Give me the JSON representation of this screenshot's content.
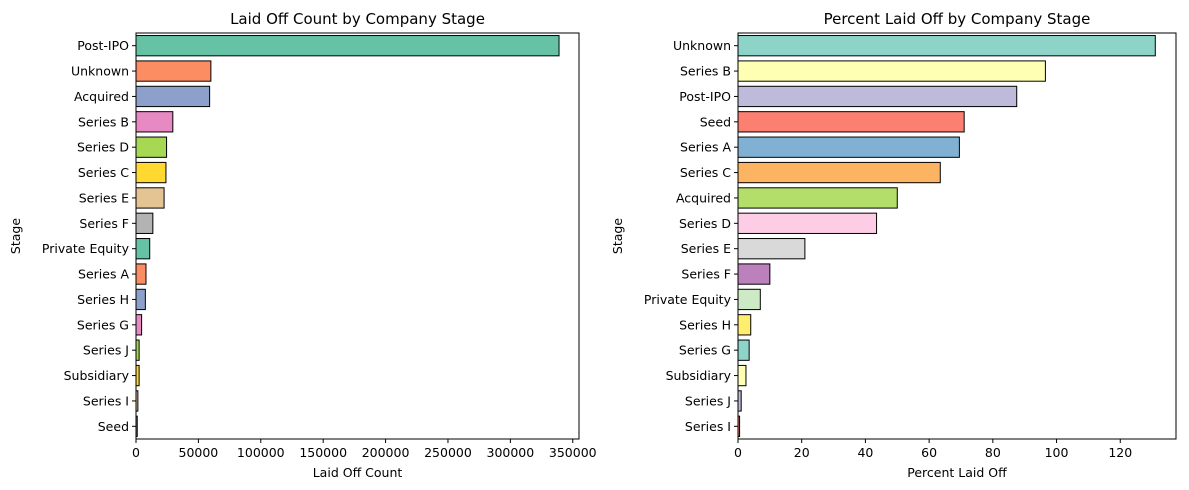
{
  "chart_data": [
    {
      "type": "bar",
      "orientation": "horizontal",
      "title": "Laid Off Count by Company Stage",
      "xlabel": "Laid Off Count",
      "ylabel": "Stage",
      "xlim": [
        0,
        355000
      ],
      "xticks": [
        0,
        50000,
        100000,
        150000,
        200000,
        250000,
        300000,
        350000
      ],
      "xtick_labels": [
        "0",
        "50000",
        "100000",
        "150000",
        "200000",
        "250000",
        "300000",
        "350000"
      ],
      "grid": false,
      "categories": [
        "Post-IPO",
        "Unknown",
        "Acquired",
        "Series B",
        "Series D",
        "Series C",
        "Series E",
        "Series F",
        "Private Equity",
        "Series A",
        "Series H",
        "Series G",
        "Series J",
        "Subsidiary",
        "Series I",
        "Seed"
      ],
      "values": [
        339000,
        60000,
        59000,
        29500,
        24500,
        24000,
        22500,
        13500,
        11000,
        8000,
        7500,
        4500,
        2500,
        2500,
        1500,
        1000
      ],
      "colors": [
        "#66c2a5",
        "#fc8d62",
        "#8da0cb",
        "#e78ac3",
        "#a6d854",
        "#ffd92f",
        "#e5c494",
        "#b3b3b3",
        "#66c2a5",
        "#fc8d62",
        "#8da0cb",
        "#e78ac3",
        "#a6d854",
        "#ffd92f",
        "#e5c494",
        "#b3b3b3"
      ]
    },
    {
      "type": "bar",
      "orientation": "horizontal",
      "title": "Percent Laid Off by Company Stage",
      "xlabel": "Percent Laid Off",
      "ylabel": "Stage",
      "xlim": [
        0,
        137.5
      ],
      "xticks": [
        0,
        20,
        40,
        60,
        80,
        100,
        120
      ],
      "xtick_labels": [
        "0",
        "20",
        "40",
        "60",
        "80",
        "100",
        "120"
      ],
      "grid": false,
      "categories": [
        "Unknown",
        "Series B",
        "Post-IPO",
        "Seed",
        "Series A",
        "Series C",
        "Acquired",
        "Series D",
        "Series E",
        "Series F",
        "Private Equity",
        "Series H",
        "Series G",
        "Subsidiary",
        "Series J",
        "Series I"
      ],
      "values": [
        131,
        96.5,
        87.5,
        71,
        69.5,
        63.5,
        50,
        43.5,
        21,
        10,
        7,
        4,
        3.5,
        2.5,
        1,
        0.5
      ],
      "colors": [
        "#8dd3c7",
        "#ffffb3",
        "#bebada",
        "#fb8072",
        "#80b1d3",
        "#fdb462",
        "#b3de69",
        "#fccde5",
        "#d9d9d9",
        "#bc80bd",
        "#ccebc5",
        "#ffed6f",
        "#8dd3c7",
        "#ffffb3",
        "#bebada",
        "#fb8072"
      ]
    }
  ]
}
